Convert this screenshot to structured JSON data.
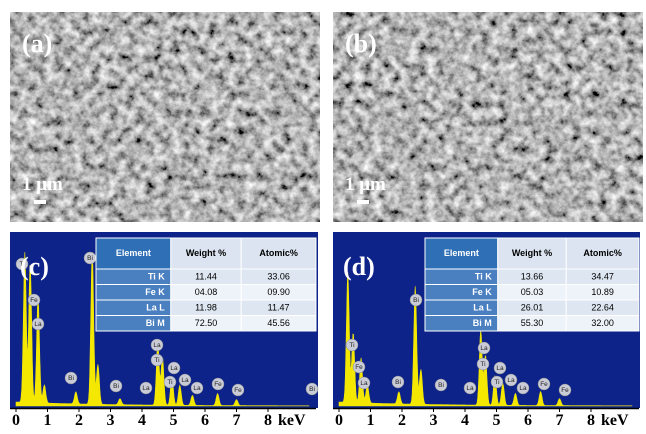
{
  "panels": [
    {
      "label": "(a)",
      "scale_bar": "1 μm"
    },
    {
      "label": "(b)",
      "scale_bar": "1 μm"
    },
    {
      "label": "(c)",
      "table": {
        "header": [
          "Element",
          "Weight %",
          "Atomic%"
        ],
        "rows": [
          [
            "Ti K",
            "11.44",
            "33.06"
          ],
          [
            "Fe K",
            "04.08",
            "09.90"
          ],
          [
            "La L",
            "11.98",
            "11.47"
          ],
          [
            "Bi M",
            "72.50",
            "45.56"
          ]
        ]
      },
      "peaks": [
        "Ti",
        "Fe",
        "La",
        "Bi",
        "Bi",
        "Bi",
        "La",
        "La",
        "Ti",
        "Ti",
        "La",
        "La",
        "La",
        "Fe",
        "Fe",
        "Bi"
      ],
      "axis": {
        "ticks": [
          0,
          1,
          2,
          3,
          4,
          5,
          6,
          7,
          8
        ],
        "unit": "keV"
      }
    },
    {
      "label": "(d)",
      "table": {
        "header": [
          "Element",
          "Weight %",
          "Atomic%"
        ],
        "rows": [
          [
            "Ti K",
            "13.66",
            "34.47"
          ],
          [
            "Fe K",
            "05.03",
            "10.89"
          ],
          [
            "La L",
            "26.01",
            "22.64"
          ],
          [
            "Bi M",
            "55.30",
            "32.00"
          ]
        ]
      },
      "peaks": [
        "Ti",
        "Fe",
        "La",
        "Bi",
        "Bi",
        "Bi",
        "La",
        "La",
        "Ti",
        "Ti",
        "La",
        "La",
        "La",
        "Fe",
        "Fe"
      ],
      "axis": {
        "ticks": [
          0,
          1,
          2,
          3,
          4,
          5,
          6,
          7,
          8
        ],
        "unit": "keV"
      }
    }
  ]
}
